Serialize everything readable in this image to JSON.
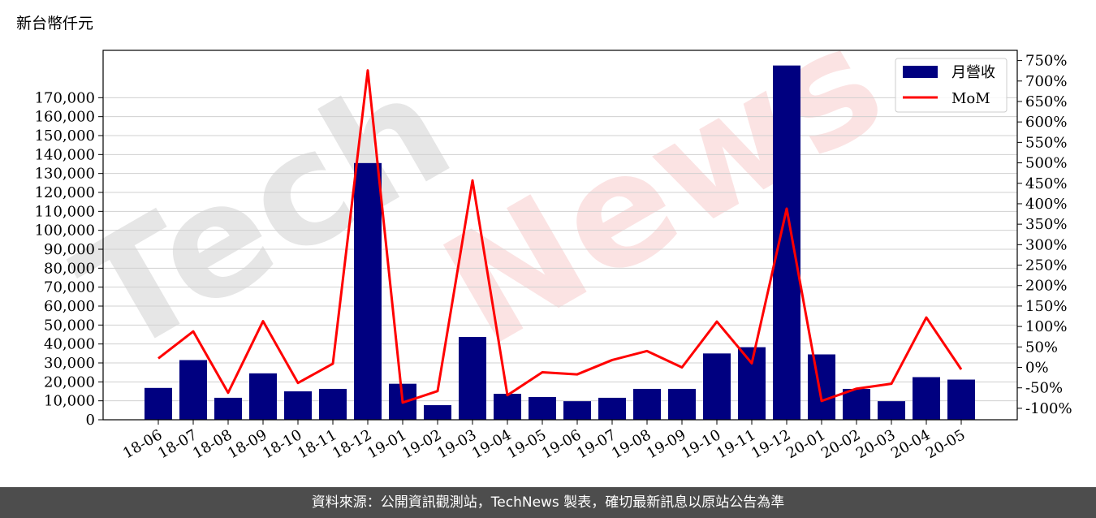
{
  "header": {
    "unit_label": "新台幣仟元"
  },
  "footer": {
    "source_text": "資料來源：公開資訊觀測站，TechNews 製表，確切最新訊息以原站公告為準"
  },
  "watermark": {
    "text_gray": "Tech",
    "text_red": "News",
    "color_gray": "#e6e6e6",
    "color_red": "#fbe3e3"
  },
  "colors": {
    "bar": "#000080",
    "line": "#ff0000",
    "grid": "#d0d0d0"
  },
  "chart_data": {
    "type": "bar",
    "categories": [
      "18-06",
      "18-07",
      "18-08",
      "18-09",
      "18-10",
      "18-11",
      "18-12",
      "19-01",
      "19-02",
      "19-03",
      "19-04",
      "19-05",
      "19-06",
      "19-07",
      "19-08",
      "19-09",
      "19-10",
      "19-11",
      "19-12",
      "20-01",
      "20-02",
      "20-03",
      "20-04",
      "20-05"
    ],
    "series": [
      {
        "name": "月營收",
        "type": "bar",
        "axis": "left",
        "values": [
          16800,
          31500,
          11600,
          24500,
          15000,
          16300,
          135500,
          19000,
          7700,
          43700,
          13700,
          12000,
          9800,
          11600,
          16300,
          16300,
          35000,
          38300,
          187000,
          34500,
          16300,
          9800,
          22500,
          21200
        ]
      },
      {
        "name": "MoM",
        "type": "line",
        "axis": "right",
        "values": [
          22,
          88,
          -62,
          113,
          -38,
          9,
          726,
          -86,
          -58,
          457,
          -68,
          -12,
          -17,
          18,
          40,
          0,
          112,
          10,
          388,
          -82,
          -52,
          -40,
          122,
          -5
        ]
      }
    ],
    "left_axis": {
      "ticks": [
        0,
        10000,
        20000,
        30000,
        40000,
        50000,
        60000,
        70000,
        80000,
        90000,
        100000,
        110000,
        120000,
        130000,
        140000,
        150000,
        160000,
        170000
      ],
      "tick_labels": [
        "0",
        "10,000",
        "20,000",
        "30,000",
        "40,000",
        "50,000",
        "60,000",
        "70,000",
        "80,000",
        "90,000",
        "100,000",
        "110,000",
        "120,000",
        "130,000",
        "140,000",
        "150,000",
        "160,000",
        "170,000"
      ],
      "ylim": [
        0,
        195000
      ]
    },
    "right_axis": {
      "ticks": [
        -100,
        -50,
        0,
        50,
        100,
        150,
        200,
        250,
        300,
        350,
        400,
        450,
        500,
        550,
        600,
        650,
        700,
        750
      ],
      "tick_labels": [
        "-100%",
        "-50%",
        "0%",
        "50%",
        "100%",
        "150%",
        "200%",
        "250%",
        "300%",
        "350%",
        "400%",
        "450%",
        "500%",
        "550%",
        "600%",
        "650%",
        "700%",
        "750%"
      ],
      "ylim": [
        -128,
        775
      ]
    },
    "legend": {
      "placement": "top-right",
      "entries": [
        "月營收",
        "MoM"
      ]
    },
    "grid": "horizontal"
  }
}
